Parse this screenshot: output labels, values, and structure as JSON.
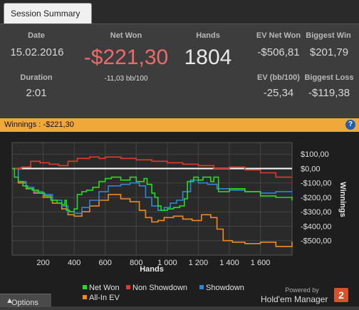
{
  "tabs": [
    {
      "label": "Session Summary"
    }
  ],
  "summary": {
    "date_label": "Date",
    "date_value": "15.02.2016",
    "duration_label": "Duration",
    "duration_value": "2:01",
    "net_won_label": "Net Won",
    "net_won_value": "-$221,30",
    "net_won_bb": "-11,03 bb/100",
    "hands_label": "Hands",
    "hands_value": "1804",
    "ev_net_won_label": "EV Net Won",
    "ev_net_won_value": "-$506,81",
    "biggest_win_label": "Biggest Win",
    "biggest_win_value": "$201,79",
    "ev_bb_label": "EV (bb/100)",
    "ev_bb_value": "-25,34",
    "biggest_loss_label": "Biggest Loss",
    "biggest_loss_value": "-$119,38"
  },
  "chart_header": {
    "text": "Winnings : -$221,30",
    "help_icon": "?"
  },
  "colors": {
    "net_won": "#22dd22",
    "non_showdown": "#e03a2a",
    "showdown": "#2e86d8",
    "all_in_ev": "#f08a20",
    "zero_line": "#ffffff",
    "net_won_value": "#ee6a6a"
  },
  "chart_data": {
    "type": "line",
    "title": "",
    "xlabel": "Hands",
    "ylabel": "Winnings",
    "xlim": [
      0,
      1804
    ],
    "ylim": [
      -600,
      180
    ],
    "xticks": [
      200,
      400,
      600,
      800,
      1000,
      1200,
      1400,
      1600
    ],
    "xtick_labels": [
      "200",
      "400",
      "600",
      "800",
      "1 000",
      "1 200",
      "1 400",
      "1 600"
    ],
    "yticks": [
      100,
      0,
      -100,
      -200,
      -300,
      -400,
      -500
    ],
    "ytick_labels": [
      "$100,00",
      "$0,00",
      "-$100,00",
      "-$200,00",
      "-$300,00",
      "-$400,00",
      "-$500,00"
    ],
    "grid": true,
    "legend_position": "bottom",
    "series": [
      {
        "name": "Net Won",
        "x": [
          0,
          15,
          40,
          70,
          100,
          130,
          170,
          210,
          250,
          290,
          320,
          340,
          350,
          370,
          400,
          420,
          450,
          480,
          520,
          560,
          600,
          640,
          700,
          760,
          800,
          850,
          870,
          900,
          920,
          940,
          960,
          1000,
          1040,
          1080,
          1110,
          1130,
          1170,
          1200,
          1230,
          1280,
          1300,
          1330,
          1400,
          1500,
          1600,
          1700,
          1804
        ],
        "values": [
          0,
          -60,
          -90,
          -120,
          -140,
          -150,
          -170,
          -190,
          -220,
          -240,
          -250,
          -220,
          -290,
          -300,
          -280,
          -180,
          -160,
          -150,
          -130,
          -90,
          -70,
          -60,
          -80,
          -60,
          -90,
          -70,
          -110,
          -170,
          -200,
          -260,
          -290,
          -280,
          -270,
          -260,
          -210,
          -90,
          -60,
          -80,
          -60,
          -90,
          -60,
          -160,
          -140,
          -160,
          -190,
          -200,
          -221.3
        ]
      },
      {
        "name": "Non Showdown",
        "x": [
          0,
          60,
          120,
          180,
          240,
          300,
          360,
          420,
          500,
          560,
          600,
          700,
          800,
          900,
          1000,
          1100,
          1200,
          1300,
          1400,
          1500,
          1600,
          1700,
          1804
        ],
        "values": [
          0,
          10,
          50,
          40,
          30,
          20,
          50,
          70,
          80,
          70,
          80,
          70,
          60,
          50,
          40,
          30,
          20,
          0,
          10,
          -10,
          -30,
          -60,
          -60
        ]
      },
      {
        "name": "Showdown",
        "x": [
          0,
          40,
          90,
          140,
          200,
          260,
          320,
          360,
          400,
          450,
          500,
          560,
          620,
          700,
          760,
          820,
          860,
          900,
          940,
          980,
          1020,
          1060,
          1100,
          1150,
          1200,
          1260,
          1320,
          1400,
          1500,
          1600,
          1700,
          1804
        ],
        "values": [
          0,
          -90,
          -130,
          -160,
          -180,
          -220,
          -260,
          -300,
          -310,
          -270,
          -220,
          -160,
          -120,
          -110,
          -100,
          -120,
          -200,
          -260,
          -290,
          -270,
          -240,
          -220,
          -160,
          -80,
          -100,
          -110,
          -140,
          -150,
          -160,
          -170,
          -160,
          -160
        ]
      },
      {
        "name": "All-In EV",
        "x": [
          0,
          40,
          90,
          140,
          200,
          260,
          320,
          360,
          400,
          450,
          500,
          560,
          620,
          700,
          760,
          820,
          860,
          900,
          940,
          980,
          1040,
          1100,
          1160,
          1220,
          1280,
          1320,
          1360,
          1420,
          1500,
          1600,
          1700,
          1804
        ],
        "values": [
          0,
          -100,
          -140,
          -170,
          -200,
          -240,
          -280,
          -320,
          -330,
          -300,
          -260,
          -220,
          -180,
          -210,
          -230,
          -290,
          -340,
          -370,
          -360,
          -340,
          -330,
          -350,
          -360,
          -320,
          -340,
          -420,
          -500,
          -510,
          -520,
          -510,
          -540,
          -506.81
        ]
      }
    ]
  },
  "footer": {
    "options_label": "Options",
    "powered_by": "Powered by",
    "product": "Hold'em Manager",
    "logo_text": "2"
  }
}
